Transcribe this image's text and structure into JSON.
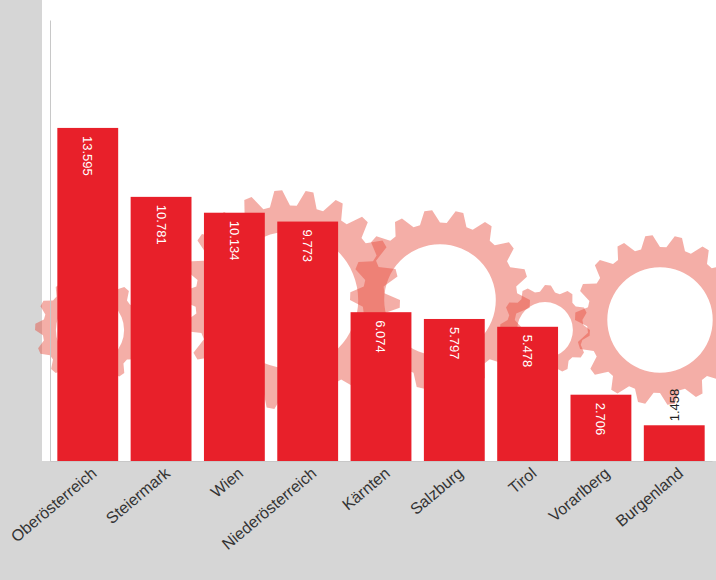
{
  "chart_data": {
    "type": "bar",
    "categories": [
      "Oberösterreich",
      "Steiermark",
      "Wien",
      "Niederösterreich",
      "Kärnten",
      "Salzburg",
      "Tirol",
      "Vorarlberg",
      "Burgenland"
    ],
    "values": [
      13595,
      10781,
      10134,
      9773,
      6074,
      5797,
      5478,
      2706,
      1458
    ],
    "value_labels": [
      "13.595",
      "10.781",
      "10.134",
      "9.773",
      "6.074",
      "5.797",
      "5.478",
      "2.706",
      "1.458"
    ],
    "color": "#e8202a",
    "ylim": [
      0,
      18000
    ],
    "data_labels": true,
    "tick_labels": "x",
    "grid": false
  }
}
